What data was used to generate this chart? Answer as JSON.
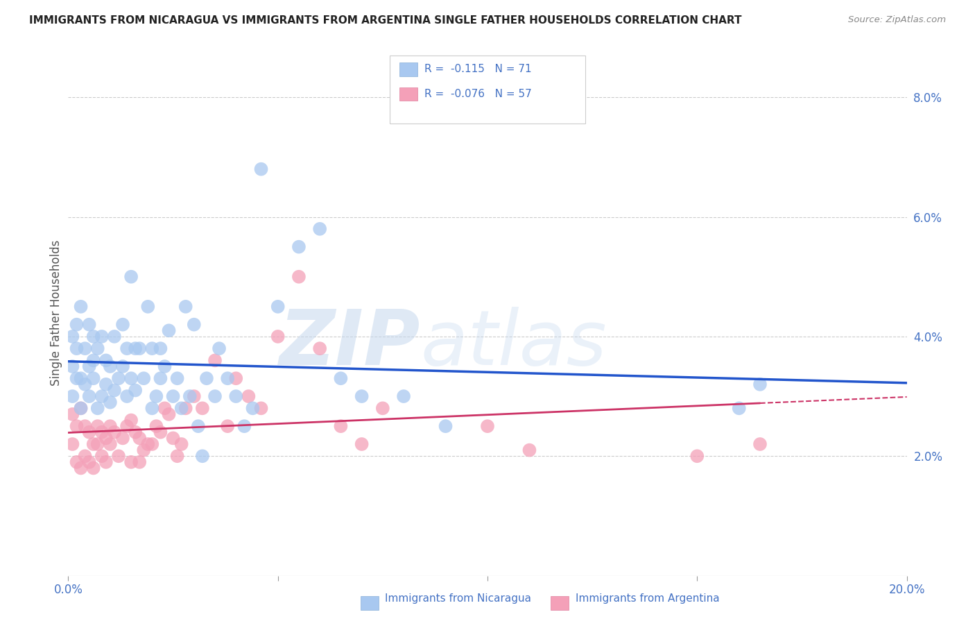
{
  "title": "IMMIGRANTS FROM NICARAGUA VS IMMIGRANTS FROM ARGENTINA SINGLE FATHER HOUSEHOLDS CORRELATION CHART",
  "source": "Source: ZipAtlas.com",
  "ylabel": "Single Father Households",
  "xlim": [
    0.0,
    0.2
  ],
  "ylim": [
    0.0,
    0.088
  ],
  "color_nicaragua": "#a8c8f0",
  "color_argentina": "#f4a0b8",
  "line_color_nicaragua": "#2255cc",
  "line_color_argentina": "#cc3366",
  "background_color": "#ffffff",
  "grid_color": "#cccccc",
  "title_color": "#222222",
  "axis_label_color": "#4472c4",
  "nicaragua_x": [
    0.001,
    0.001,
    0.001,
    0.002,
    0.002,
    0.002,
    0.003,
    0.003,
    0.003,
    0.004,
    0.004,
    0.005,
    0.005,
    0.005,
    0.006,
    0.006,
    0.006,
    0.007,
    0.007,
    0.008,
    0.008,
    0.009,
    0.009,
    0.01,
    0.01,
    0.011,
    0.011,
    0.012,
    0.013,
    0.013,
    0.014,
    0.014,
    0.015,
    0.015,
    0.016,
    0.016,
    0.017,
    0.018,
    0.019,
    0.02,
    0.02,
    0.021,
    0.022,
    0.022,
    0.023,
    0.024,
    0.025,
    0.026,
    0.027,
    0.028,
    0.029,
    0.03,
    0.031,
    0.032,
    0.033,
    0.035,
    0.036,
    0.038,
    0.04,
    0.042,
    0.044,
    0.046,
    0.05,
    0.055,
    0.06,
    0.065,
    0.07,
    0.08,
    0.09,
    0.16,
    0.165
  ],
  "nicaragua_y": [
    0.03,
    0.035,
    0.04,
    0.033,
    0.038,
    0.042,
    0.028,
    0.033,
    0.045,
    0.032,
    0.038,
    0.03,
    0.035,
    0.042,
    0.033,
    0.036,
    0.04,
    0.028,
    0.038,
    0.03,
    0.04,
    0.032,
    0.036,
    0.029,
    0.035,
    0.031,
    0.04,
    0.033,
    0.035,
    0.042,
    0.03,
    0.038,
    0.033,
    0.05,
    0.031,
    0.038,
    0.038,
    0.033,
    0.045,
    0.028,
    0.038,
    0.03,
    0.033,
    0.038,
    0.035,
    0.041,
    0.03,
    0.033,
    0.028,
    0.045,
    0.03,
    0.042,
    0.025,
    0.02,
    0.033,
    0.03,
    0.038,
    0.033,
    0.03,
    0.025,
    0.028,
    0.068,
    0.045,
    0.055,
    0.058,
    0.033,
    0.03,
    0.03,
    0.025,
    0.028,
    0.032
  ],
  "argentina_x": [
    0.001,
    0.001,
    0.002,
    0.002,
    0.003,
    0.003,
    0.004,
    0.004,
    0.005,
    0.005,
    0.006,
    0.006,
    0.007,
    0.007,
    0.008,
    0.008,
    0.009,
    0.009,
    0.01,
    0.01,
    0.011,
    0.012,
    0.013,
    0.014,
    0.015,
    0.015,
    0.016,
    0.017,
    0.017,
    0.018,
    0.019,
    0.02,
    0.021,
    0.022,
    0.023,
    0.024,
    0.025,
    0.026,
    0.027,
    0.028,
    0.03,
    0.032,
    0.035,
    0.038,
    0.04,
    0.043,
    0.046,
    0.05,
    0.055,
    0.06,
    0.065,
    0.07,
    0.075,
    0.1,
    0.11,
    0.15,
    0.165
  ],
  "argentina_y": [
    0.027,
    0.022,
    0.019,
    0.025,
    0.028,
    0.018,
    0.025,
    0.02,
    0.024,
    0.019,
    0.022,
    0.018,
    0.025,
    0.022,
    0.024,
    0.02,
    0.023,
    0.019,
    0.022,
    0.025,
    0.024,
    0.02,
    0.023,
    0.025,
    0.026,
    0.019,
    0.024,
    0.023,
    0.019,
    0.021,
    0.022,
    0.022,
    0.025,
    0.024,
    0.028,
    0.027,
    0.023,
    0.02,
    0.022,
    0.028,
    0.03,
    0.028,
    0.036,
    0.025,
    0.033,
    0.03,
    0.028,
    0.04,
    0.05,
    0.038,
    0.025,
    0.022,
    0.028,
    0.025,
    0.021,
    0.02,
    0.022
  ],
  "watermark_zip": "ZIP",
  "watermark_atlas": "atlas"
}
